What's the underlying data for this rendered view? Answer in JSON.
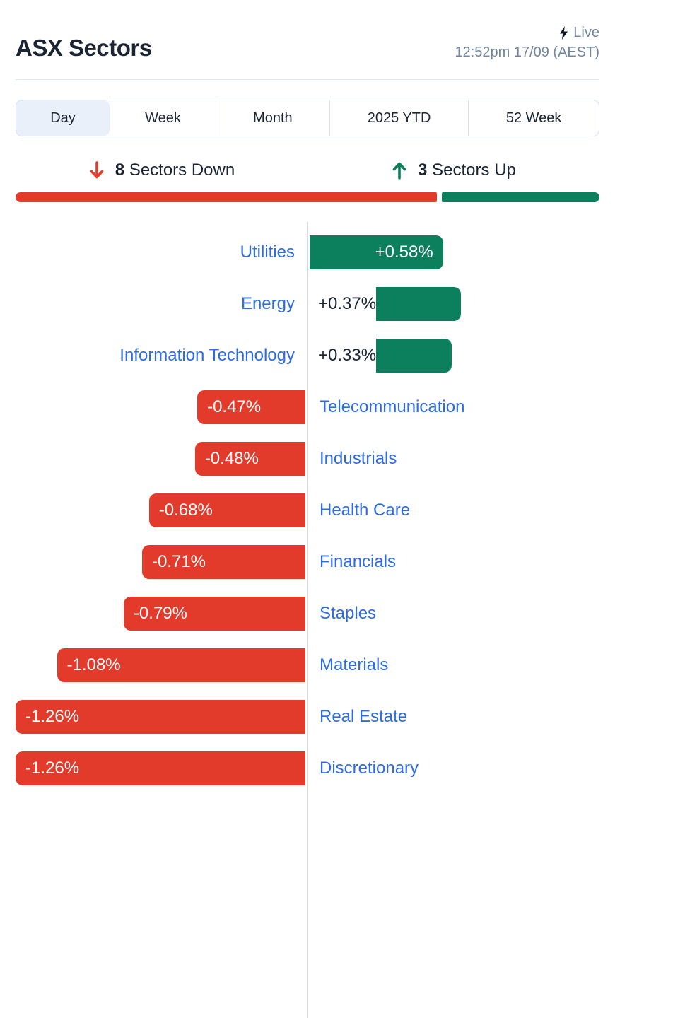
{
  "header": {
    "title": "ASX Sectors",
    "live_label": "Live",
    "timestamp": "12:52pm 17/09 (AEST)"
  },
  "tabs": {
    "active": "Day",
    "items": [
      "Day",
      "Week",
      "Month",
      "2025 YTD",
      "52 Week"
    ]
  },
  "summary": {
    "down": {
      "count": "8",
      "label": "Sectors Down"
    },
    "up": {
      "count": "3",
      "label": "Sectors Up"
    }
  },
  "colors": {
    "positive_green": "#0c7f5d",
    "negative_red": "#e33b2b",
    "sector_link_blue": "#2e6ce5"
  },
  "chart_data": {
    "type": "bar",
    "orientation": "horizontal-diverging",
    "unit": "%",
    "xlim": [
      -1.26,
      1.26
    ],
    "categories": [
      "Utilities",
      "Energy",
      "Information Technology",
      "Telecommunication",
      "Industrials",
      "Health Care",
      "Financials",
      "Staples",
      "Materials",
      "Real Estate",
      "Discretionary"
    ],
    "values": [
      0.58,
      0.37,
      0.33,
      -0.47,
      -0.48,
      -0.68,
      -0.71,
      -0.79,
      -1.08,
      -1.26,
      -1.26
    ],
    "labels": [
      "+0.58%",
      "+0.37%",
      "+0.33%",
      "-0.47%",
      "-0.48%",
      "-0.68%",
      "-0.71%",
      "-0.79%",
      "-1.08%",
      "-1.26%",
      "-1.26%"
    ]
  }
}
